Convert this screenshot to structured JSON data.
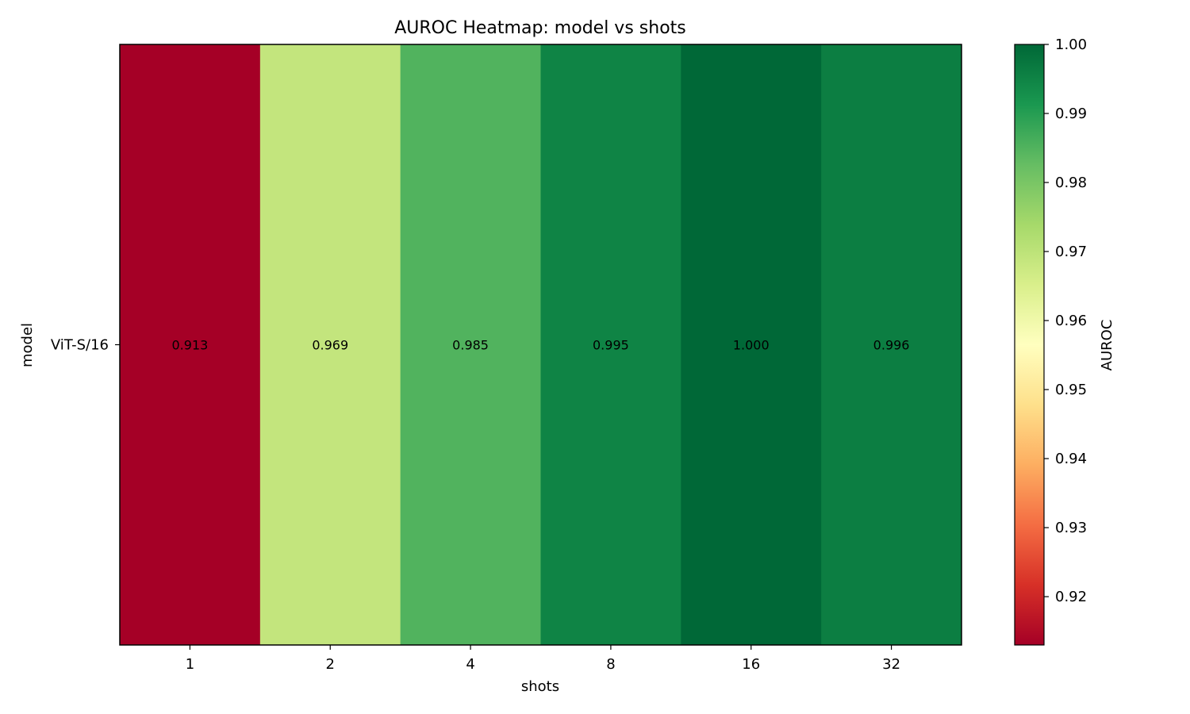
{
  "chart_data": {
    "type": "heatmap",
    "title": "AUROC Heatmap: model vs shots",
    "xlabel": "shots",
    "ylabel": "model",
    "x_categories": [
      "1",
      "2",
      "4",
      "8",
      "16",
      "32"
    ],
    "y_categories": [
      "ViT-S/16"
    ],
    "values": [
      [
        0.913,
        0.969,
        0.985,
        0.995,
        1.0,
        0.996
      ]
    ],
    "cell_labels": [
      [
        "0.913",
        "0.969",
        "0.985",
        "0.995",
        "1.000",
        "0.996"
      ]
    ],
    "colorbar": {
      "label": "AUROC",
      "vmin": 0.913,
      "vmax": 1.0,
      "ticks": [
        0.92,
        0.93,
        0.94,
        0.95,
        0.96,
        0.97,
        0.98,
        0.99,
        1.0
      ],
      "tick_labels": [
        "0.92",
        "0.93",
        "0.94",
        "0.95",
        "0.96",
        "0.97",
        "0.98",
        "0.99",
        "1.00"
      ],
      "colormap": "RdYlGn",
      "colormap_stops": [
        "#a50026",
        "#d73027",
        "#f46d43",
        "#fdae61",
        "#fee08b",
        "#ffffbf",
        "#d9ef8b",
        "#a6d96a",
        "#66bd63",
        "#1a9850",
        "#006837"
      ]
    }
  }
}
